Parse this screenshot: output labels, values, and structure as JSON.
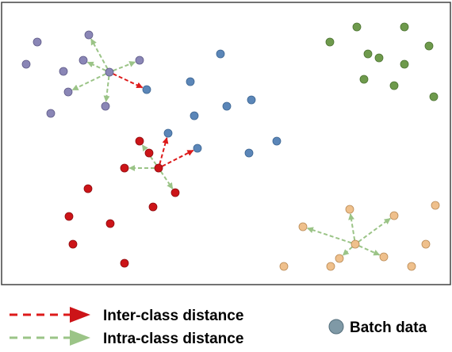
{
  "legend": {
    "inter_label": "Inter-class distance",
    "intra_label": "Intra-class distance",
    "batch_label": "Batch data"
  },
  "colors": {
    "purple": "#8a86b6",
    "blue": "#5b86b8",
    "green": "#6e9a4c",
    "red": "#cc1418",
    "orange": "#efc08c",
    "inter_arrow": "#dd1a1a",
    "intra_arrow": "#9bc487",
    "batch": "#7f99a6"
  }
}
